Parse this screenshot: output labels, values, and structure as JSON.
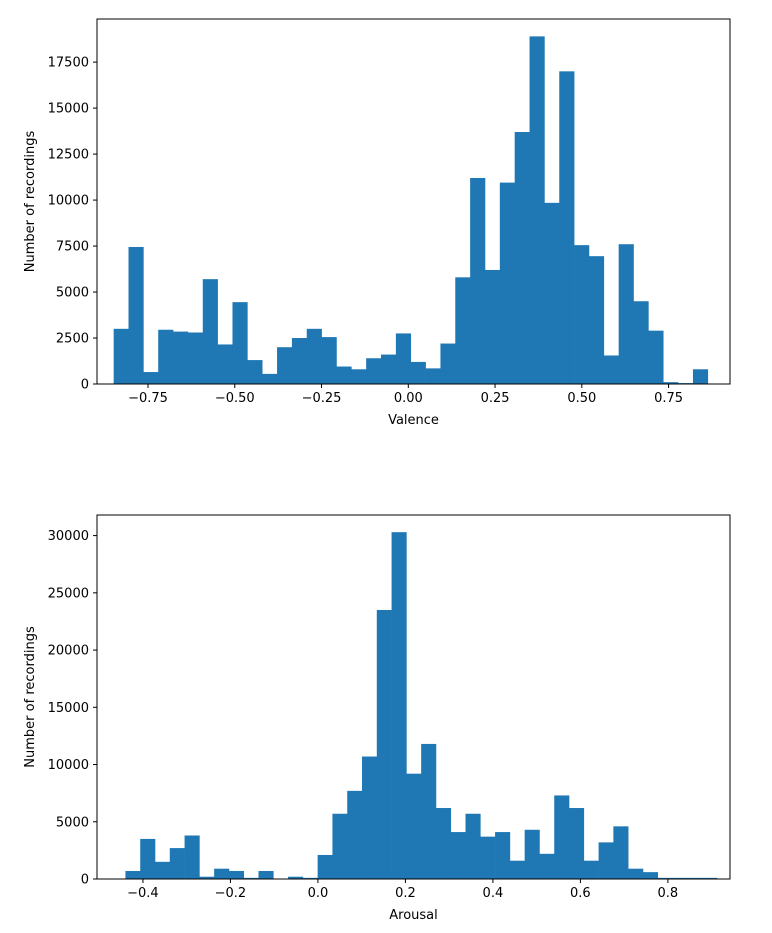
{
  "chart_data": [
    {
      "type": "bar",
      "title": "",
      "xlabel": "Valence",
      "ylabel": "Number of recordings",
      "xlim": [
        -0.897,
        0.927
      ],
      "ylim": [
        0,
        19845
      ],
      "bin_width": 0.0428,
      "bin_start": -0.849,
      "xticks": [
        -0.75,
        -0.5,
        -0.25,
        0.0,
        0.25,
        0.5,
        0.75
      ],
      "xtick_labels": [
        "−0.75",
        "−0.50",
        "−0.25",
        "0.00",
        "0.25",
        "0.50",
        "0.75"
      ],
      "yticks": [
        0,
        2500,
        5000,
        7500,
        10000,
        12500,
        15000,
        17500
      ],
      "ytick_labels": [
        "0",
        "2500",
        "5000",
        "7500",
        "10000",
        "12500",
        "15000",
        "17500"
      ],
      "values": [
        3000,
        7450,
        650,
        2950,
        2850,
        2800,
        5700,
        2150,
        4450,
        1300,
        550,
        2000,
        2500,
        3000,
        2550,
        950,
        800,
        1400,
        1600,
        2750,
        1200,
        850,
        2200,
        5800,
        11200,
        6200,
        10950,
        13700,
        18900,
        9850,
        17000,
        7550,
        6950,
        1550,
        7600,
        4500,
        2900,
        100,
        50,
        800
      ],
      "color": "#1f77b4"
    },
    {
      "type": "bar",
      "title": "",
      "xlabel": "Arousal",
      "ylabel": "Number of recordings",
      "xlim": [
        -0.505,
        0.942
      ],
      "ylim": [
        0,
        31800
      ],
      "bin_width": 0.0338,
      "bin_start": -0.44,
      "xticks": [
        -0.4,
        -0.2,
        0.0,
        0.2,
        0.4,
        0.6,
        0.8
      ],
      "xtick_labels": [
        "−0.4",
        "−0.2",
        "0.0",
        "0.2",
        "0.4",
        "0.6",
        "0.8"
      ],
      "yticks": [
        0,
        5000,
        10000,
        15000,
        20000,
        25000,
        30000
      ],
      "ytick_labels": [
        "0",
        "5000",
        "10000",
        "15000",
        "20000",
        "25000",
        "30000"
      ],
      "values": [
        700,
        3500,
        1500,
        2700,
        3800,
        200,
        900,
        700,
        100,
        700,
        0,
        200,
        100,
        2100,
        5700,
        7700,
        10700,
        23500,
        30300,
        9200,
        11800,
        6200,
        4100,
        5700,
        3700,
        4100,
        1600,
        4300,
        2200,
        7300,
        6200,
        1600,
        3200,
        4600,
        900,
        600,
        100,
        100,
        100,
        100
      ],
      "color": "#1f77b4"
    }
  ]
}
